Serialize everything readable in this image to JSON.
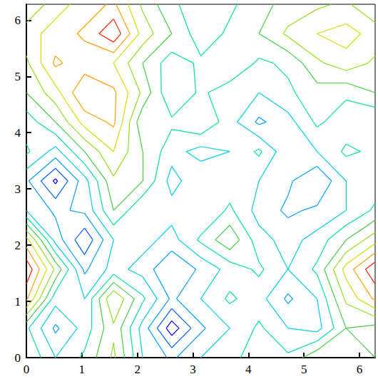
{
  "chart_data": {
    "type": "contour",
    "x": [
      0,
      0.524,
      1.047,
      1.571,
      2.094,
      2.618,
      3.142,
      3.665,
      4.189,
      4.712,
      5.236,
      5.76,
      6.283
    ],
    "y": [
      0,
      0.524,
      1.047,
      1.571,
      2.094,
      2.618,
      3.142,
      3.665,
      4.189,
      4.712,
      5.236,
      5.76,
      6.283
    ],
    "z": [
      [
        2,
        1.5,
        1.8,
        2.3,
        1.5,
        1.2,
        1.5,
        1.6,
        2,
        1.8,
        2.2,
        2,
        2
      ],
      [
        1.8,
        1.2,
        1.6,
        2.2,
        1.4,
        0.6,
        1.2,
        1.5,
        1.8,
        1.5,
        1.4,
        2,
        1.9
      ],
      [
        2.8,
        1.6,
        1.5,
        2.5,
        1.8,
        1.2,
        1.5,
        1.8,
        1.6,
        1.2,
        1.5,
        2.3,
        2.8
      ],
      [
        3.2,
        2.2,
        1.2,
        1.6,
        1.4,
        1,
        1.3,
        1.6,
        1.8,
        1.5,
        1.8,
        2.6,
        3.2
      ],
      [
        2.6,
        1.4,
        0.8,
        1.5,
        1.6,
        1.4,
        1.8,
        2.2,
        1.6,
        1.4,
        1.6,
        2,
        2.4
      ],
      [
        1.5,
        1.2,
        1.3,
        2,
        1.5,
        1.6,
        1.5,
        1.8,
        1.4,
        1.2,
        1.3,
        1.5,
        1.8
      ],
      [
        1.3,
        0.7,
        1.4,
        2.2,
        2,
        1.4,
        1.7,
        1.6,
        1.5,
        1.3,
        1,
        1.5,
        1.6
      ],
      [
        1.8,
        1.4,
        2,
        2.5,
        2,
        1.6,
        1.4,
        1.5,
        1.8,
        1.3,
        1.5,
        1.8,
        1.7
      ],
      [
        1.6,
        2,
        2.6,
        2.8,
        1.8,
        1.8,
        2,
        1.6,
        1.2,
        1.4,
        1.8,
        1.6,
        1.5
      ],
      [
        2,
        2.4,
        3,
        2.8,
        2.2,
        1.5,
        1.8,
        1.6,
        1.5,
        1.7,
        1.9,
        1.8,
        2
      ],
      [
        2.2,
        2.8,
        2.6,
        2.5,
        2,
        1.6,
        1.8,
        2,
        1.7,
        1.8,
        2.2,
        2.4,
        2.2
      ],
      [
        2.4,
        2.6,
        2.8,
        3.2,
        2.4,
        2,
        1.6,
        1.8,
        2,
        2.3,
        2.5,
        2.6,
        2.4
      ],
      [
        2,
        2.4,
        2.6,
        2.8,
        2.2,
        1.8,
        1.6,
        1.7,
        1.9,
        2.1,
        2.2,
        2.3,
        2
      ]
    ],
    "levels": [
      0.75,
      1,
      1.25,
      1.5,
      1.75,
      2,
      2.25,
      2.5,
      2.75,
      3
    ],
    "colors": [
      "#0000ff",
      "#0060ff",
      "#00a0ff",
      "#00d0e0",
      "#00e0a0",
      "#40d040",
      "#90e020",
      "#d0e000",
      "#ffa000",
      "#ff2000"
    ],
    "xlim": [
      0,
      6.283
    ],
    "ylim": [
      0,
      6.283
    ],
    "xticks": [
      0,
      1,
      2,
      3,
      4,
      5,
      6
    ],
    "yticks": [
      0,
      1,
      2,
      3,
      4,
      5,
      6
    ],
    "grid": false
  }
}
